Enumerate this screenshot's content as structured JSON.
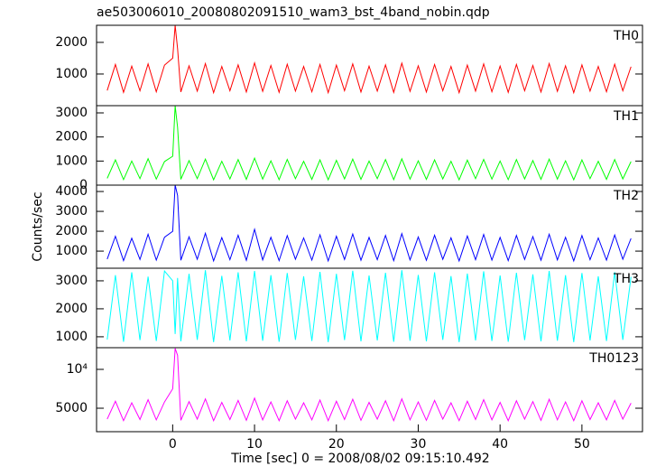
{
  "chart_data": [
    {
      "type": "line",
      "title": "ae503006010_20080802091510_wam3_bst_4band_nobin.qdp",
      "label": "TH0",
      "color": "#ff0000",
      "x": [
        -8,
        -7,
        -6,
        -5,
        -4,
        -3,
        -2,
        -1,
        0,
        0.3,
        0.6,
        1,
        2,
        3,
        4,
        5,
        6,
        7,
        8,
        9,
        10,
        11,
        12,
        13,
        14,
        15,
        16,
        17,
        18,
        19,
        20,
        21,
        22,
        23,
        24,
        25,
        26,
        27,
        28,
        29,
        30,
        31,
        32,
        33,
        34,
        35,
        36,
        37,
        38,
        39,
        40,
        41,
        42,
        43,
        44,
        45,
        46,
        47,
        48,
        49,
        50,
        51,
        52,
        53,
        54,
        55,
        56
      ],
      "values": [
        480,
        1300,
        420,
        1250,
        470,
        1320,
        440,
        1280,
        1500,
        2540,
        1800,
        430,
        1260,
        460,
        1330,
        410,
        1240,
        470,
        1290,
        430,
        1350,
        450,
        1270,
        420,
        1310,
        460,
        1240,
        440,
        1300,
        410,
        1280,
        470,
        1320,
        430,
        1250,
        460,
        1290,
        420,
        1340,
        450,
        1260,
        430,
        1300,
        470,
        1240,
        410,
        1280,
        460,
        1320,
        440,
        1250,
        420,
        1300,
        470,
        1270,
        430,
        1330,
        450,
        1260,
        410,
        1290,
        460,
        1240,
        440,
        1310,
        470,
        1230
      ],
      "xlim": [
        -9.3,
        57.4
      ],
      "ylim": [
        0,
        2540
      ],
      "yticks": [
        1000,
        2000
      ]
    },
    {
      "type": "line",
      "label": "TH1",
      "color": "#00ff00",
      "x": [
        -8,
        -7,
        -6,
        -5,
        -4,
        -3,
        -2,
        -1,
        0,
        0.3,
        0.6,
        1,
        2,
        3,
        4,
        5,
        6,
        7,
        8,
        9,
        10,
        11,
        12,
        13,
        14,
        15,
        16,
        17,
        18,
        19,
        20,
        21,
        22,
        23,
        24,
        25,
        26,
        27,
        28,
        29,
        30,
        31,
        32,
        33,
        34,
        35,
        36,
        37,
        38,
        39,
        40,
        41,
        42,
        43,
        44,
        45,
        46,
        47,
        48,
        49,
        50,
        51,
        52,
        53,
        54,
        55,
        56
      ],
      "values": [
        280,
        1050,
        230,
        1000,
        270,
        1100,
        250,
        980,
        1200,
        3300,
        2400,
        240,
        1020,
        270,
        1080,
        220,
        990,
        260,
        1060,
        240,
        1120,
        250,
        1010,
        230,
        1070,
        270,
        990,
        240,
        1050,
        220,
        1030,
        260,
        1080,
        240,
        1000,
        270,
        1060,
        230,
        1090,
        250,
        1010,
        240,
        1050,
        260,
        990,
        220,
        1040,
        270,
        1070,
        250,
        1000,
        230,
        1060,
        260,
        1020,
        240,
        1080,
        250,
        1010,
        220,
        1050,
        270,
        990,
        240,
        1060,
        260,
        980
      ],
      "xlim": [
        -9.3,
        57.4
      ],
      "ylim": [
        0,
        3300
      ],
      "yticks": [
        0,
        1000,
        2000,
        3000
      ]
    },
    {
      "type": "line",
      "label": "TH2",
      "color": "#0000ff",
      "ylabel": "Counts/sec",
      "x": [
        -8,
        -7,
        -6,
        -5,
        -4,
        -3,
        -2,
        -1,
        0,
        0.3,
        0.6,
        1,
        2,
        3,
        4,
        5,
        6,
        7,
        8,
        9,
        10,
        11,
        12,
        13,
        14,
        15,
        16,
        17,
        18,
        19,
        20,
        21,
        22,
        23,
        24,
        25,
        26,
        27,
        28,
        29,
        30,
        31,
        32,
        33,
        34,
        35,
        36,
        37,
        38,
        39,
        40,
        41,
        42,
        43,
        44,
        45,
        46,
        47,
        48,
        49,
        50,
        51,
        52,
        53,
        54,
        55,
        56
      ],
      "values": [
        600,
        1750,
        520,
        1650,
        580,
        1850,
        550,
        1700,
        2000,
        4320,
        3800,
        540,
        1720,
        590,
        1900,
        510,
        1680,
        570,
        1800,
        540,
        2100,
        560,
        1700,
        520,
        1780,
        590,
        1660,
        550,
        1820,
        510,
        1750,
        580,
        1860,
        540,
        1690,
        570,
        1790,
        520,
        1880,
        560,
        1710,
        540,
        1800,
        590,
        1670,
        510,
        1760,
        570,
        1840,
        550,
        1690,
        520,
        1790,
        580,
        1730,
        540,
        1850,
        560,
        1700,
        510,
        1780,
        570,
        1660,
        550,
        1810,
        590,
        1640
      ],
      "xlim": [
        -9.3,
        57.4
      ],
      "ylim": [
        140,
        4320
      ],
      "yticks": [
        1000,
        2000,
        3000,
        4000
      ]
    },
    {
      "type": "line",
      "label": "TH3",
      "color": "#00ffff",
      "x": [
        -8,
        -7,
        -6,
        -5,
        -4,
        -3,
        -2,
        -1,
        0,
        0.3,
        0.6,
        1,
        2,
        3,
        4,
        5,
        6,
        7,
        8,
        9,
        10,
        11,
        12,
        13,
        14,
        15,
        16,
        17,
        18,
        19,
        20,
        21,
        22,
        23,
        24,
        25,
        26,
        27,
        28,
        29,
        30,
        31,
        32,
        33,
        34,
        35,
        36,
        37,
        38,
        39,
        40,
        41,
        42,
        43,
        44,
        45,
        46,
        47,
        48,
        49,
        50,
        51,
        52,
        53,
        54,
        55,
        56
      ],
      "values": [
        900,
        3200,
        820,
        3300,
        880,
        3150,
        850,
        3350,
        3000,
        1100,
        3100,
        840,
        3250,
        890,
        3380,
        810,
        3180,
        870,
        3300,
        840,
        3350,
        860,
        3200,
        820,
        3280,
        890,
        3160,
        850,
        3320,
        810,
        3250,
        880,
        3360,
        840,
        3190,
        870,
        3290,
        820,
        3380,
        860,
        3210,
        840,
        3300,
        890,
        3170,
        810,
        3260,
        870,
        3340,
        850,
        3190,
        820,
        3290,
        880,
        3230,
        840,
        3350,
        860,
        3200,
        810,
        3280,
        870,
        3160,
        850,
        3310,
        890,
        3140
      ],
      "xlim": [
        -9.3,
        57.4
      ],
      "ylim": [
        610,
        3450
      ],
      "yticks": [
        1000,
        2000,
        3000
      ]
    },
    {
      "type": "line",
      "label": "TH0123",
      "color": "#ff00ff",
      "xlabel": "Time [sec] 0 = 2008/08/02 09:15:10.492",
      "x": [
        -8,
        -7,
        -6,
        -5,
        -4,
        -3,
        -2,
        -1,
        0,
        0.3,
        0.6,
        1,
        2,
        3,
        4,
        5,
        6,
        7,
        8,
        9,
        10,
        11,
        12,
        13,
        14,
        15,
        16,
        17,
        18,
        19,
        20,
        21,
        22,
        23,
        24,
        25,
        26,
        27,
        28,
        29,
        30,
        31,
        32,
        33,
        34,
        35,
        36,
        37,
        38,
        39,
        40,
        41,
        42,
        43,
        44,
        45,
        46,
        47,
        48,
        49,
        50,
        51,
        52,
        53,
        54,
        55,
        56
      ],
      "values": [
        3600,
        5900,
        3400,
        5700,
        3550,
        6100,
        3500,
        5800,
        7500,
        12700,
        11800,
        3450,
        5850,
        3600,
        6200,
        3400,
        5750,
        3550,
        6000,
        3450,
        6300,
        3500,
        5800,
        3400,
        5950,
        3600,
        5700,
        3500,
        6050,
        3400,
        5900,
        3550,
        6150,
        3450,
        5750,
        3600,
        5950,
        3400,
        6200,
        3500,
        5800,
        3450,
        6000,
        3600,
        5700,
        3400,
        5900,
        3550,
        6100,
        3500,
        5750,
        3400,
        5950,
        3600,
        5850,
        3450,
        6150,
        3500,
        5800,
        3400,
        5950,
        3550,
        5700,
        3500,
        6000,
        3600,
        5650
      ],
      "xlim": [
        -9.3,
        57.4
      ],
      "ylim": [
        1980,
        12790
      ],
      "yticks": [
        5000,
        {
          "value": 10000,
          "label": "10⁴"
        }
      ],
      "xticks": [
        0,
        10,
        20,
        30,
        40,
        50
      ]
    }
  ]
}
